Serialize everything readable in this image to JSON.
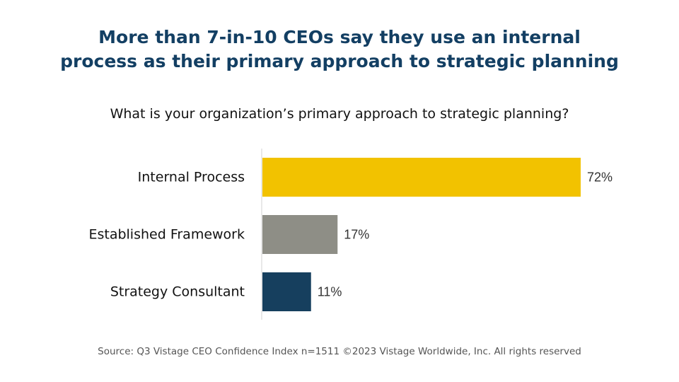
{
  "header": {
    "title_line1": "More than 7-in-10 CEOs say they use an internal",
    "title_line2": "process as their primary approach to strategic planning",
    "question": "What is your organization’s primary approach to strategic planning?"
  },
  "chart_data": {
    "type": "bar",
    "orientation": "horizontal",
    "categories": [
      "Internal Process",
      "Established Framework",
      "Strategy Consultant"
    ],
    "values": [
      72,
      17,
      11
    ],
    "value_labels": [
      "72%",
      "17%",
      "11%"
    ],
    "unit": "%",
    "colors": [
      "#f2c200",
      "#8e8e86",
      "#163f5e"
    ],
    "xlim": [
      0,
      100
    ],
    "grid": false,
    "legend": "none"
  },
  "footer": {
    "source": "Source: Q3 Vistage CEO Confidence Index n=1511 ©2023 Vistage Worldwide, Inc. All rights reserved"
  }
}
